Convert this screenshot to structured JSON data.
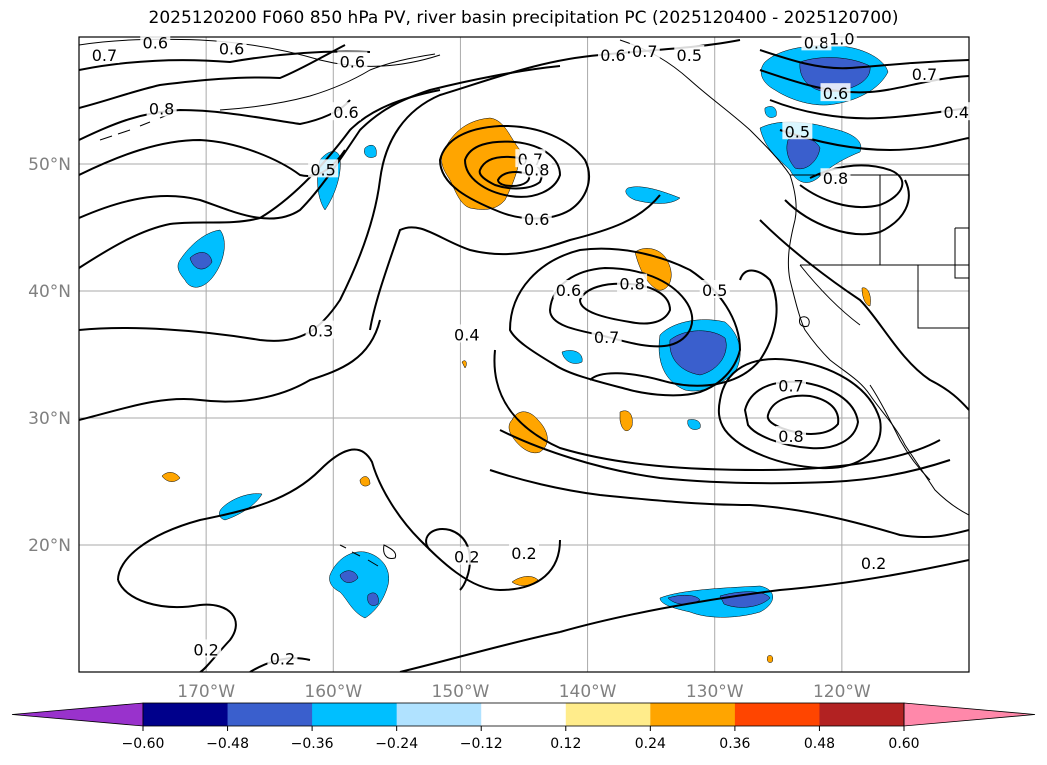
{
  "title": "2025120200 F060 850 hPa PV, river basin precipitation PC (2025120400 - 2025120700)",
  "map": {
    "projection": "plate-carree",
    "lon_range": [
      -180,
      -110
    ],
    "lat_range": [
      10,
      60
    ],
    "gridlines": true,
    "lat_ticks": [
      {
        "lat": 50,
        "label": "50°N"
      },
      {
        "lat": 40,
        "label": "40°N"
      },
      {
        "lat": 30,
        "label": "30°N"
      },
      {
        "lat": 20,
        "label": "20°N"
      }
    ],
    "lon_ticks": [
      {
        "lon": -170,
        "label": "170°W"
      },
      {
        "lon": -160,
        "label": "160°W"
      },
      {
        "lon": -150,
        "label": "150°W"
      },
      {
        "lon": -140,
        "label": "140°W"
      },
      {
        "lon": -130,
        "label": "130°W"
      },
      {
        "lon": -120,
        "label": "120°W"
      }
    ]
  },
  "contour_labels": [
    {
      "text": "0.7",
      "lon": -178.0,
      "lat": 58.5
    },
    {
      "text": "0.6",
      "lon": -174.0,
      "lat": 59.5
    },
    {
      "text": "0.8",
      "lon": -173.5,
      "lat": 54.3
    },
    {
      "text": "0.6",
      "lon": -168.0,
      "lat": 59.0
    },
    {
      "text": "0.6",
      "lon": -158.5,
      "lat": 58.0
    },
    {
      "text": "0.6",
      "lon": -159.0,
      "lat": 54.0
    },
    {
      "text": "0.5",
      "lon": -160.8,
      "lat": 49.5
    },
    {
      "text": "0.3",
      "lon": -161.0,
      "lat": 36.8
    },
    {
      "text": "0.4",
      "lon": -149.5,
      "lat": 36.5
    },
    {
      "text": "0.7",
      "lon": -144.5,
      "lat": 50.3
    },
    {
      "text": "0.8",
      "lon": -144.0,
      "lat": 49.5
    },
    {
      "text": "0.6",
      "lon": -144.0,
      "lat": 45.6
    },
    {
      "text": "0.6",
      "lon": -138.0,
      "lat": 58.5
    },
    {
      "text": "0.7",
      "lon": -135.5,
      "lat": 58.8
    },
    {
      "text": "0.5",
      "lon": -132.0,
      "lat": 58.5
    },
    {
      "text": "0.8",
      "lon": -122.0,
      "lat": 59.5
    },
    {
      "text": "1.0",
      "lon": -120.0,
      "lat": 59.8
    },
    {
      "text": "0.7",
      "lon": -113.5,
      "lat": 57.0
    },
    {
      "text": "0.6",
      "lon": -120.5,
      "lat": 55.5
    },
    {
      "text": "0.4",
      "lon": -111.0,
      "lat": 54.0
    },
    {
      "text": "0.5",
      "lon": -123.5,
      "lat": 52.5
    },
    {
      "text": "0.8",
      "lon": -120.5,
      "lat": 48.8
    },
    {
      "text": "0.6",
      "lon": -141.5,
      "lat": 40.0
    },
    {
      "text": "0.8",
      "lon": -136.5,
      "lat": 40.5
    },
    {
      "text": "0.5",
      "lon": -130.0,
      "lat": 40.0
    },
    {
      "text": "0.7",
      "lon": -138.5,
      "lat": 36.3
    },
    {
      "text": "0.7",
      "lon": -124.0,
      "lat": 32.5
    },
    {
      "text": "0.8",
      "lon": -124.0,
      "lat": 28.5
    },
    {
      "text": "0.2",
      "lon": -149.5,
      "lat": 19.0
    },
    {
      "text": "0.2",
      "lon": -145.0,
      "lat": 19.3
    },
    {
      "text": "0.2",
      "lon": -117.5,
      "lat": 18.5
    },
    {
      "text": "0.2",
      "lon": -170.0,
      "lat": 11.7
    },
    {
      "text": "0.2",
      "lon": -164.0,
      "lat": 11.0
    }
  ],
  "colorbar": {
    "orientation": "horizontal",
    "extend": "both",
    "boundaries": [
      -0.6,
      -0.48,
      -0.36,
      -0.24,
      -0.12,
      0.12,
      0.24,
      0.36,
      0.48,
      0.6
    ],
    "labels": [
      "−0.60",
      "−0.48",
      "−0.36",
      "−0.24",
      "−0.12",
      "0.12",
      "0.24",
      "0.36",
      "0.48",
      "0.60"
    ],
    "colors": [
      "#9932cc",
      "#00008b",
      "#3a5fcd",
      "#00bfff",
      "#b0e2ff",
      "#ffffff",
      "#ffec8b",
      "#ffa500",
      "#ff4500",
      "#b22222",
      "#ff88aa"
    ]
  },
  "line_color": "#000000",
  "land_outline_color": "#000000"
}
